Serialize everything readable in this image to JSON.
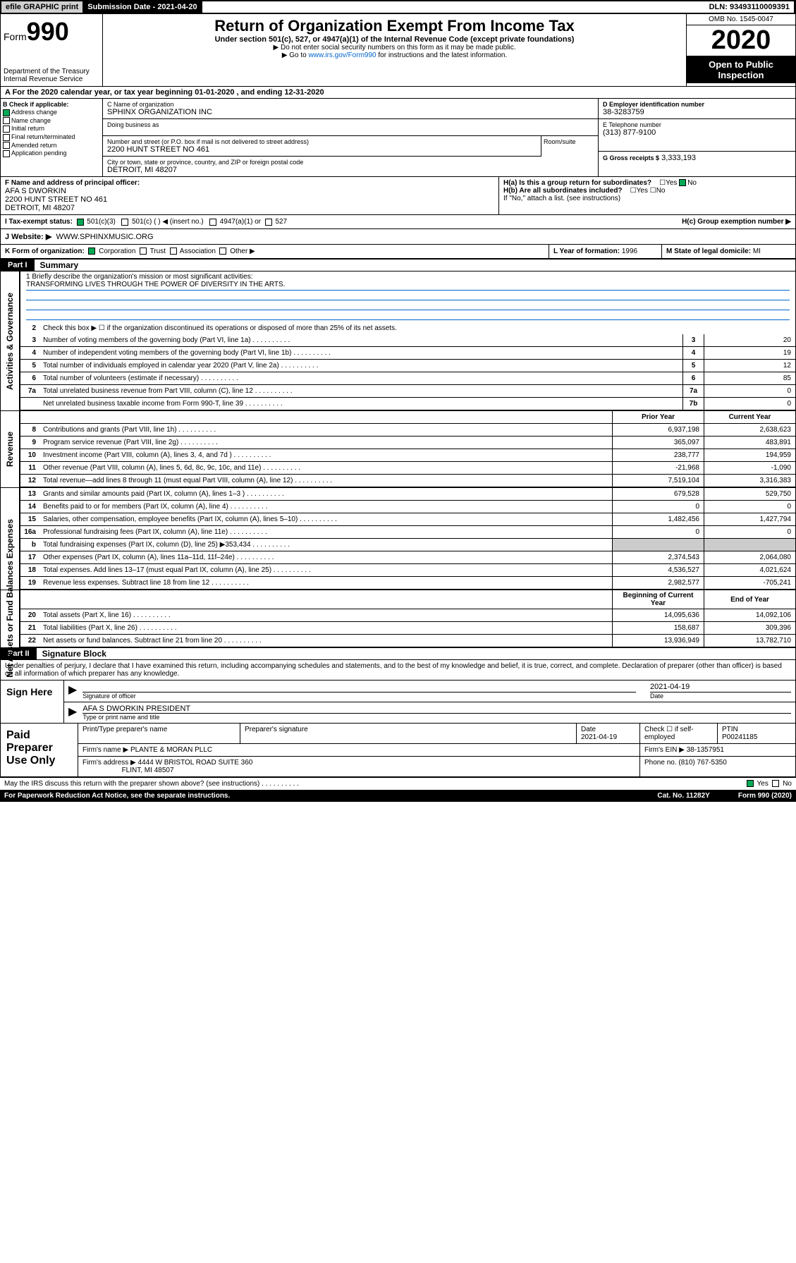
{
  "topbar": {
    "efile": "efile GRAPHIC print",
    "submission": "Submission Date - 2021-04-20",
    "dln": "DLN: 93493110009391"
  },
  "header": {
    "form_prefix": "Form",
    "form_num": "990",
    "dept": "Department of the Treasury\nInternal Revenue Service",
    "title": "Return of Organization Exempt From Income Tax",
    "subtitle": "Under section 501(c), 527, or 4947(a)(1) of the Internal Revenue Code (except private foundations)",
    "note1": "▶ Do not enter social security numbers on this form as it may be made public.",
    "note2_pre": "▶ Go to ",
    "note2_link": "www.irs.gov/Form990",
    "note2_post": " for instructions and the latest information.",
    "omb": "OMB No. 1545-0047",
    "year": "2020",
    "open": "Open to Public Inspection"
  },
  "period": "A For the 2020 calendar year, or tax year beginning 01-01-2020    , and ending 12-31-2020",
  "checkB": {
    "label": "B Check if applicable:",
    "items": [
      "Address change",
      "Name change",
      "Initial return",
      "Final return/terminated",
      "Amended return",
      "Application pending"
    ]
  },
  "org": {
    "name_lbl": "C Name of organization",
    "name": "SPHINX ORGANIZATION INC",
    "dba_lbl": "Doing business as",
    "addr_lbl": "Number and street (or P.O. box if mail is not delivered to street address)",
    "addr": "2200 HUNT STREET NO 461",
    "room_lbl": "Room/suite",
    "city_lbl": "City or town, state or province, country, and ZIP or foreign postal code",
    "city": "DETROIT, MI  48207"
  },
  "right": {
    "ein_lbl": "D Employer identification number",
    "ein": "38-3283759",
    "phone_lbl": "E Telephone number",
    "phone": "(313) 877-9100",
    "gross_lbl": "G Gross receipts $",
    "gross": "3,333,193"
  },
  "officer": {
    "lbl": "F  Name and address of principal officer:",
    "name": "AFA S DWORKIN",
    "addr1": "2200 HUNT STREET NO 461",
    "addr2": "DETROIT, MI  48207"
  },
  "groupH": {
    "ha": "H(a)  Is this a group return for subordinates?",
    "hb": "H(b)  Are all subordinates included?",
    "hb_note": "If \"No,\" attach a list. (see instructions)",
    "hc": "H(c)  Group exemption number ▶",
    "yes": "Yes",
    "no": "No"
  },
  "status": {
    "lbl": "I     Tax-exempt status:",
    "c3": "501(c)(3)",
    "c": "501(c) (  ) ◀ (insert no.)",
    "a1": "4947(a)(1) or",
    "s527": "527"
  },
  "website": {
    "lbl": "J    Website: ▶",
    "val": "WWW.SPHINXMUSIC.ORG"
  },
  "formK": {
    "lbl": "K Form of organization:",
    "corp": "Corporation",
    "trust": "Trust",
    "assoc": "Association",
    "other": "Other ▶"
  },
  "yearL": {
    "lbl": "L Year of formation:",
    "val": "1996"
  },
  "stateM": {
    "lbl": "M State of legal domicile:",
    "val": "MI"
  },
  "part1": {
    "hdr": "Part I",
    "title": "Summary"
  },
  "mission": {
    "lbl": "1   Briefly describe the organization's mission or most significant activities:",
    "text": "TRANSFORMING LIVES THROUGH THE POWER OF DIVERSITY IN THE ARTS."
  },
  "summary": {
    "l2": "Check this box ▶ ☐  if the organization discontinued its operations or disposed of more than 25% of its net assets.",
    "rows_gov": [
      {
        "n": "3",
        "d": "Number of voting members of the governing body (Part VI, line 1a)",
        "box": "3",
        "v": "20"
      },
      {
        "n": "4",
        "d": "Number of independent voting members of the governing body (Part VI, line 1b)",
        "box": "4",
        "v": "19"
      },
      {
        "n": "5",
        "d": "Total number of individuals employed in calendar year 2020 (Part V, line 2a)",
        "box": "5",
        "v": "12"
      },
      {
        "n": "6",
        "d": "Total number of volunteers (estimate if necessary)",
        "box": "6",
        "v": "85"
      },
      {
        "n": "7a",
        "d": "Total unrelated business revenue from Part VIII, column (C), line 12",
        "box": "7a",
        "v": "0"
      },
      {
        "n": "",
        "d": "Net unrelated business taxable income from Form 990-T, line 39",
        "box": "7b",
        "v": "0"
      }
    ],
    "hdr_prior": "Prior Year",
    "hdr_curr": "Current Year",
    "rows_rev": [
      {
        "n": "8",
        "d": "Contributions and grants (Part VIII, line 1h)",
        "p": "6,937,198",
        "c": "2,638,623"
      },
      {
        "n": "9",
        "d": "Program service revenue (Part VIII, line 2g)",
        "p": "365,097",
        "c": "483,891"
      },
      {
        "n": "10",
        "d": "Investment income (Part VIII, column (A), lines 3, 4, and 7d )",
        "p": "238,777",
        "c": "194,959"
      },
      {
        "n": "11",
        "d": "Other revenue (Part VIII, column (A), lines 5, 6d, 8c, 9c, 10c, and 11e)",
        "p": "-21,968",
        "c": "-1,090"
      },
      {
        "n": "12",
        "d": "Total revenue—add lines 8 through 11 (must equal Part VIII, column (A), line 12)",
        "p": "7,519,104",
        "c": "3,316,383"
      }
    ],
    "rows_exp": [
      {
        "n": "13",
        "d": "Grants and similar amounts paid (Part IX, column (A), lines 1–3 )",
        "p": "679,528",
        "c": "529,750"
      },
      {
        "n": "14",
        "d": "Benefits paid to or for members (Part IX, column (A), line 4)",
        "p": "0",
        "c": "0"
      },
      {
        "n": "15",
        "d": "Salaries, other compensation, employee benefits (Part IX, column (A), lines 5–10)",
        "p": "1,482,456",
        "c": "1,427,794"
      },
      {
        "n": "16a",
        "d": "Professional fundraising fees (Part IX, column (A), line 11e)",
        "p": "0",
        "c": "0"
      },
      {
        "n": "b",
        "d": "Total fundraising expenses (Part IX, column (D), line 25) ▶353,434",
        "p": "",
        "c": "",
        "gray": true
      },
      {
        "n": "17",
        "d": "Other expenses (Part IX, column (A), lines 11a–11d, 11f–24e)",
        "p": "2,374,543",
        "c": "2,064,080"
      },
      {
        "n": "18",
        "d": "Total expenses. Add lines 13–17 (must equal Part IX, column (A), line 25)",
        "p": "4,536,527",
        "c": "4,021,624"
      },
      {
        "n": "19",
        "d": "Revenue less expenses. Subtract line 18 from line 12",
        "p": "2,982,577",
        "c": "-705,241"
      }
    ],
    "hdr_beg": "Beginning of Current Year",
    "hdr_end": "End of Year",
    "rows_net": [
      {
        "n": "20",
        "d": "Total assets (Part X, line 16)",
        "p": "14,095,636",
        "c": "14,092,106"
      },
      {
        "n": "21",
        "d": "Total liabilities (Part X, line 26)",
        "p": "158,687",
        "c": "309,396"
      },
      {
        "n": "22",
        "d": "Net assets or fund balances. Subtract line 21 from line 20",
        "p": "13,936,949",
        "c": "13,782,710"
      }
    ]
  },
  "side": {
    "gov": "Activities & Governance",
    "rev": "Revenue",
    "exp": "Expenses",
    "net": "Net Assets or Fund Balances"
  },
  "part2": {
    "hdr": "Part II",
    "title": "Signature Block"
  },
  "sig": {
    "perjury": "Under penalties of perjury, I declare that I have examined this return, including accompanying schedules and statements, and to the best of my knowledge and belief, it is true, correct, and complete. Declaration of preparer (other than officer) is based on all information of which preparer has any knowledge.",
    "sign_here": "Sign Here",
    "sig_officer": "Signature of officer",
    "date": "2021-04-19",
    "date_lbl": "Date",
    "name_title": "AFA S DWORKIN  PRESIDENT",
    "name_lbl": "Type or print name and title"
  },
  "paid": {
    "label": "Paid Preparer Use Only",
    "h1": "Print/Type preparer's name",
    "h2": "Preparer's signature",
    "h3": "Date",
    "h3v": "2021-04-19",
    "h4": "Check ☐ if self-employed",
    "h5": "PTIN",
    "h5v": "P00241185",
    "firm_lbl": "Firm's name     ▶",
    "firm": "PLANTE & MORAN PLLC",
    "ein_lbl": "Firm's EIN ▶",
    "ein": "38-1357951",
    "addr_lbl": "Firm's address ▶",
    "addr1": "4444 W BRISTOL ROAD SUITE 360",
    "addr2": "FLINT, MI  48507",
    "phone_lbl": "Phone no.",
    "phone": "(810) 767-5350"
  },
  "footer": {
    "discuss": "May the IRS discuss this return with the preparer shown above? (see instructions)",
    "yes": "Yes",
    "no": "No",
    "paperwork": "For Paperwork Reduction Act Notice, see the separate instructions.",
    "cat": "Cat. No. 11282Y",
    "form": "Form 990 (2020)"
  }
}
